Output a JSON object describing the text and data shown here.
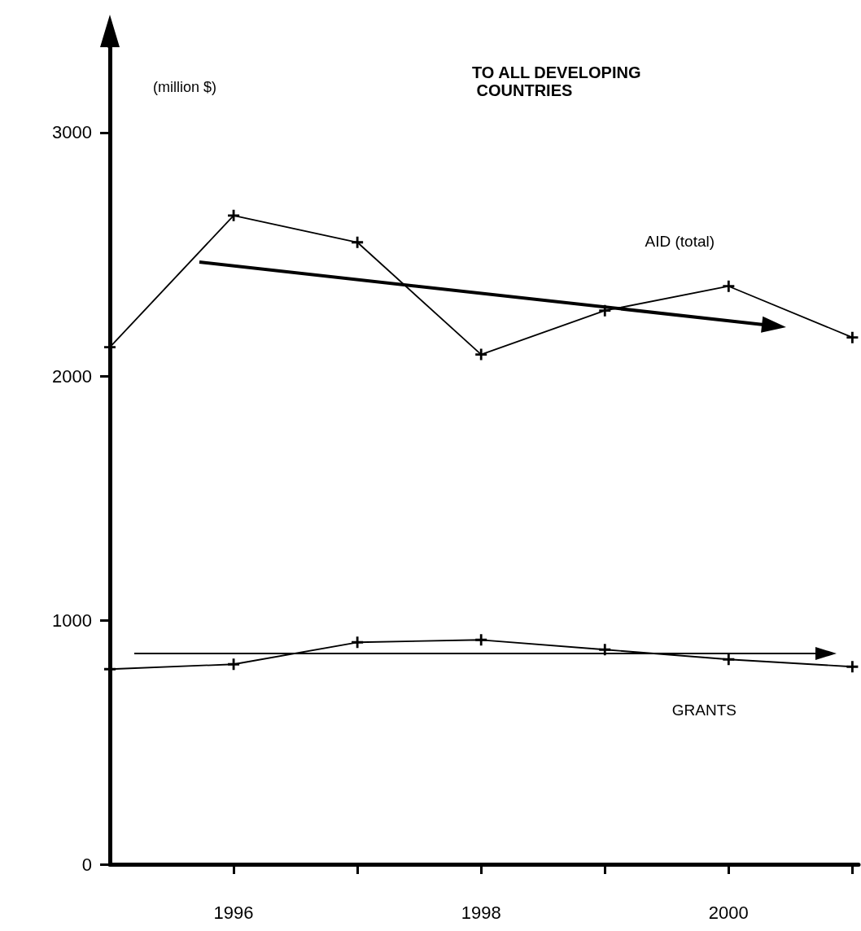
{
  "chart_data": {
    "type": "line",
    "title": "TO ALL DEVELOPING\n COUNTRIES",
    "ylabel": "(million $)",
    "x": [
      1995,
      1996,
      1997,
      1998,
      1999,
      2000,
      2001
    ],
    "series": [
      {
        "name": "AID (total)",
        "color": "#000000",
        "values": [
          2120,
          2660,
          2550,
          2090,
          2270,
          2370,
          2160
        ]
      },
      {
        "name": "GRANTS",
        "color": "#000000",
        "values": [
          800,
          820,
          910,
          920,
          880,
          840,
          810
        ]
      }
    ],
    "xlim": [
      1995,
      2001.05
    ],
    "xticks": [
      {
        "value": 1996,
        "label": "1996"
      },
      {
        "value": 1997,
        "label": null
      },
      {
        "value": 1998,
        "label": "1998"
      },
      {
        "value": 1999,
        "label": null
      },
      {
        "value": 2000,
        "label": "2000"
      },
      {
        "value": 2001,
        "label": null
      }
    ],
    "ylim": [
      0,
      3350
    ],
    "yticks": [
      0,
      1000,
      2000,
      3000
    ],
    "grid": false,
    "legend": false,
    "marker": "cross",
    "line_style": "solid"
  }
}
